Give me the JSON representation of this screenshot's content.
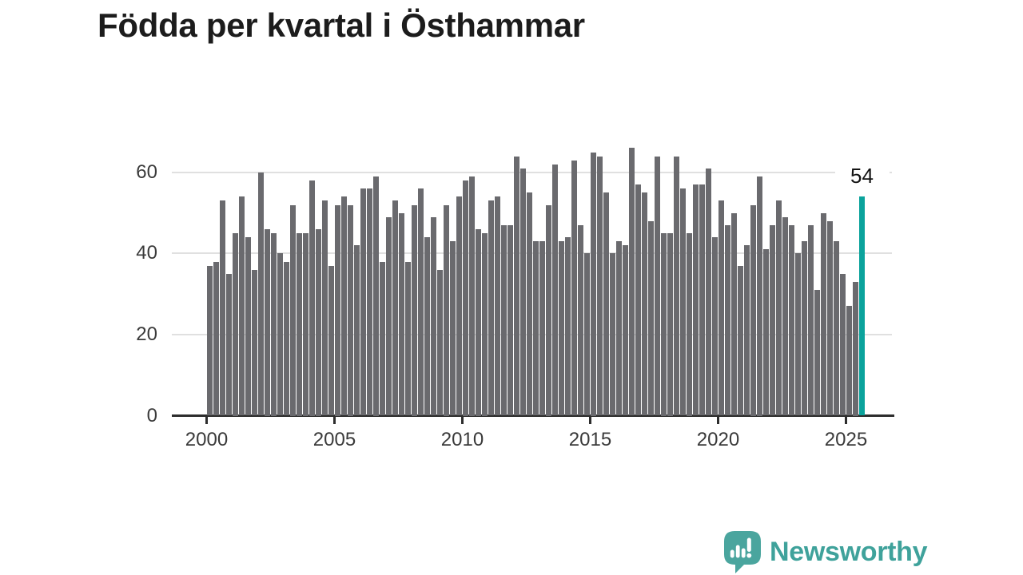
{
  "title": "Födda per kvartal i Östhammar",
  "chart_data": {
    "type": "bar",
    "title": "Födda per kvartal i Östhammar",
    "frequency": "quarterly",
    "x_start": "2000 Q1",
    "x_end": "2025 Q3",
    "values": [
      37,
      38,
      53,
      35,
      45,
      54,
      44,
      36,
      60,
      46,
      45,
      40,
      38,
      52,
      45,
      45,
      58,
      46,
      53,
      37,
      52,
      54,
      52,
      42,
      56,
      56,
      59,
      38,
      49,
      53,
      50,
      38,
      52,
      56,
      44,
      49,
      36,
      52,
      43,
      54,
      58,
      59,
      46,
      45,
      53,
      54,
      47,
      47,
      64,
      61,
      55,
      43,
      43,
      52,
      62,
      43,
      44,
      63,
      47,
      40,
      65,
      64,
      55,
      40,
      43,
      42,
      66,
      57,
      55,
      48,
      64,
      45,
      45,
      64,
      56,
      45,
      57,
      57,
      61,
      44,
      53,
      47,
      50,
      37,
      42,
      52,
      59,
      41,
      47,
      53,
      49,
      47,
      40,
      43,
      47,
      31,
      50,
      48,
      43,
      35,
      27,
      33,
      54
    ],
    "x_tick_years": [
      2000,
      2005,
      2010,
      2015,
      2020,
      2025
    ],
    "x_tick_labels": [
      "2000",
      "2005",
      "2010",
      "2015",
      "2020",
      "2025"
    ],
    "y_ticks": [
      0,
      20,
      40,
      60
    ],
    "y_tick_labels": [
      "0",
      "20",
      "40",
      "60"
    ],
    "ylim": [
      0,
      68
    ],
    "grid": "horizontal",
    "legend": "none",
    "bar_color": "#6a6a6e",
    "highlight": {
      "index": 102,
      "quarter": "2025 Q3",
      "value": 54,
      "label": "54",
      "color": "#0ba39c"
    }
  },
  "annotation": {
    "last_value_label": "54"
  },
  "footer": {
    "brand": "Newsworthy",
    "logo_icon": "speech-bubble-bar-chart-icon",
    "brand_color": "#3fa29b"
  }
}
